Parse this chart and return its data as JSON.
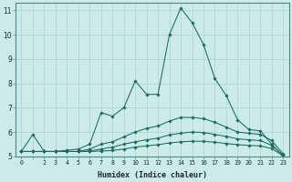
{
  "xlabel": "Humidex (Indice chaleur)",
  "background_color": "#cceae8",
  "grid_color": "#afd8d5",
  "line_color": "#1a6b5e",
  "xlim": [
    -0.5,
    23.5
  ],
  "ylim": [
    5,
    11.3
  ],
  "yticks": [
    5,
    6,
    7,
    8,
    9,
    10,
    11
  ],
  "xtick_labels": [
    "0",
    "",
    "2",
    "3",
    "4",
    "5",
    "6",
    "7",
    "8",
    "9",
    "10",
    "11",
    "12",
    "13",
    "14",
    "15",
    "16",
    "17",
    "18",
    "19",
    "20",
    "21",
    "22",
    "23"
  ],
  "lines": [
    {
      "x": [
        0,
        1,
        2,
        3,
        4,
        5,
        6,
        7,
        8,
        9,
        10,
        11,
        12,
        13,
        14,
        15,
        16,
        17,
        18,
        19,
        20,
        21,
        22,
        23
      ],
      "y": [
        5.2,
        5.9,
        5.2,
        5.2,
        5.25,
        5.3,
        5.5,
        6.8,
        6.65,
        7.0,
        8.1,
        7.55,
        7.55,
        10.0,
        11.1,
        10.5,
        9.6,
        8.2,
        7.5,
        6.5,
        6.1,
        6.05,
        5.5,
        5.0
      ]
    },
    {
      "x": [
        0,
        1,
        2,
        3,
        4,
        5,
        6,
        7,
        8,
        9,
        10,
        11,
        12,
        13,
        14,
        15,
        16,
        17,
        18,
        19,
        20,
        21,
        22,
        23
      ],
      "y": [
        5.2,
        5.2,
        5.2,
        5.2,
        5.2,
        5.2,
        5.3,
        5.5,
        5.6,
        5.8,
        6.0,
        6.15,
        6.25,
        6.45,
        6.6,
        6.6,
        6.55,
        6.4,
        6.2,
        6.0,
        5.95,
        5.9,
        5.65,
        5.1
      ]
    },
    {
      "x": [
        0,
        1,
        2,
        3,
        4,
        5,
        6,
        7,
        8,
        9,
        10,
        11,
        12,
        13,
        14,
        15,
        16,
        17,
        18,
        19,
        20,
        21,
        22,
        23
      ],
      "y": [
        5.2,
        5.2,
        5.2,
        5.2,
        5.2,
        5.2,
        5.22,
        5.3,
        5.38,
        5.5,
        5.6,
        5.68,
        5.75,
        5.88,
        5.95,
        6.0,
        5.98,
        5.9,
        5.82,
        5.72,
        5.68,
        5.65,
        5.45,
        5.05
      ]
    },
    {
      "x": [
        0,
        1,
        2,
        3,
        4,
        5,
        6,
        7,
        8,
        9,
        10,
        11,
        12,
        13,
        14,
        15,
        16,
        17,
        18,
        19,
        20,
        21,
        22,
        23
      ],
      "y": [
        5.2,
        5.2,
        5.2,
        5.2,
        5.2,
        5.2,
        5.2,
        5.22,
        5.24,
        5.3,
        5.38,
        5.43,
        5.48,
        5.55,
        5.6,
        5.62,
        5.62,
        5.58,
        5.53,
        5.48,
        5.45,
        5.43,
        5.32,
        5.02
      ]
    }
  ]
}
